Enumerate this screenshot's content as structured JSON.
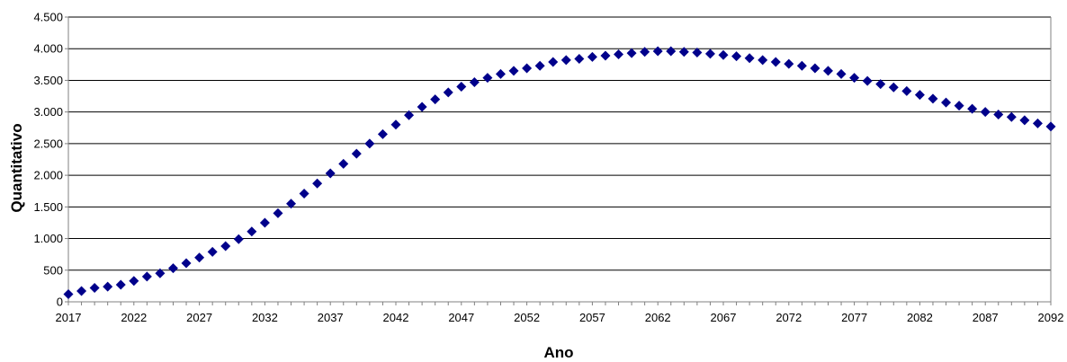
{
  "chart_data": {
    "type": "scatter",
    "title": "",
    "xlabel": "Ano",
    "ylabel": "Quantitativo",
    "xlim": [
      2017,
      2092
    ],
    "ylim": [
      0,
      4500
    ],
    "yticks": [
      0,
      500,
      1000,
      1500,
      2000,
      2500,
      3000,
      3500,
      4000,
      4500
    ],
    "ytick_labels": [
      "0",
      "500",
      "1.000",
      "1.500",
      "2.000",
      "2.500",
      "3.000",
      "3.500",
      "4.000",
      "4.500"
    ],
    "xticks": [
      2017,
      2022,
      2027,
      2032,
      2037,
      2042,
      2047,
      2052,
      2057,
      2062,
      2067,
      2072,
      2077,
      2082,
      2087,
      2092
    ],
    "xtick_labels": [
      "2017",
      "2022",
      "2027",
      "2032",
      "2037",
      "2042",
      "2047",
      "2052",
      "2057",
      "2062",
      "2067",
      "2072",
      "2077",
      "2082",
      "2087",
      "2092"
    ],
    "grid": "horizontal",
    "legend": "none",
    "marker": "diamond",
    "color": "#00008B",
    "series": [
      {
        "x": [
          2017,
          2018,
          2019,
          2020,
          2021,
          2022,
          2023,
          2024,
          2025,
          2026,
          2027,
          2028,
          2029,
          2030,
          2031,
          2032,
          2033,
          2034,
          2035,
          2036,
          2037,
          2038,
          2039,
          2040,
          2041,
          2042,
          2043,
          2044,
          2045,
          2046,
          2047,
          2048,
          2049,
          2050,
          2051,
          2052,
          2053,
          2054,
          2055,
          2056,
          2057,
          2058,
          2059,
          2060,
          2061,
          2062,
          2063,
          2064,
          2065,
          2066,
          2067,
          2068,
          2069,
          2070,
          2071,
          2072,
          2073,
          2074,
          2075,
          2076,
          2077,
          2078,
          2079,
          2080,
          2081,
          2082,
          2083,
          2084,
          2085,
          2086,
          2087,
          2088,
          2089,
          2090,
          2091,
          2092
        ],
        "y": [
          120,
          170,
          220,
          240,
          270,
          330,
          400,
          450,
          530,
          610,
          700,
          790,
          880,
          990,
          1110,
          1250,
          1400,
          1550,
          1710,
          1870,
          2030,
          2180,
          2340,
          2500,
          2650,
          2800,
          2950,
          3080,
          3200,
          3310,
          3400,
          3470,
          3540,
          3600,
          3650,
          3690,
          3730,
          3790,
          3820,
          3840,
          3870,
          3890,
          3910,
          3930,
          3950,
          3960,
          3960,
          3950,
          3940,
          3920,
          3900,
          3880,
          3850,
          3820,
          3790,
          3760,
          3730,
          3690,
          3650,
          3600,
          3540,
          3490,
          3440,
          3390,
          3330,
          3270,
          3210,
          3150,
          3100,
          3050,
          3000,
          2960,
          2920,
          2870,
          2820,
          2770
        ]
      }
    ]
  }
}
